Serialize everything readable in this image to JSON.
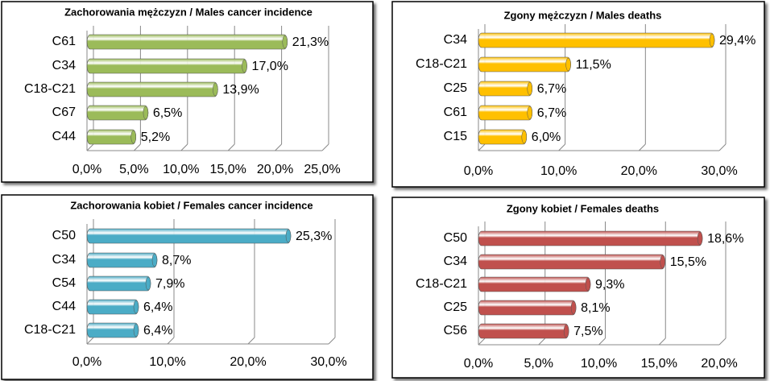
{
  "chart_data": [
    {
      "type": "bar",
      "title": "Zachorowania mężczyzn / Males cancer incidence",
      "categories": [
        "C61",
        "C34",
        "C18-C21",
        "C67",
        "C44"
      ],
      "values": [
        21.3,
        17.0,
        13.9,
        6.5,
        5.2
      ],
      "value_labels": [
        "21,3%",
        "17,0%",
        "13,9%",
        "6,5%",
        "5,2%"
      ],
      "color": "#9bbb59",
      "xlim": [
        0,
        25
      ],
      "xticks": [
        {
          "value": 0,
          "label": "0,0%"
        },
        {
          "value": 5,
          "label": "5,0%"
        },
        {
          "value": 10,
          "label": "10,0%"
        },
        {
          "value": 15,
          "label": "15,0%"
        },
        {
          "value": 20,
          "label": "20,0%"
        },
        {
          "value": 25,
          "label": "25,0%"
        }
      ],
      "grid": true
    },
    {
      "type": "bar",
      "title": "Zgony mężczyzn / Males deaths",
      "categories": [
        "C34",
        "C18-C21",
        "C25",
        "C61",
        "C15"
      ],
      "values": [
        29.4,
        11.5,
        6.7,
        6.7,
        6.0
      ],
      "value_labels": [
        "29,4%",
        "11,5%",
        "6,7%",
        "6,7%",
        "6,0%"
      ],
      "color": "#ffc000",
      "xlim": [
        0,
        30
      ],
      "xticks": [
        {
          "value": 0,
          "label": "0,0%"
        },
        {
          "value": 10,
          "label": "10,0%"
        },
        {
          "value": 20,
          "label": "20,0%"
        },
        {
          "value": 30,
          "label": "30,0%"
        }
      ],
      "grid": true
    },
    {
      "type": "bar",
      "title": "Zachorowania kobiet / Females cancer incidence",
      "categories": [
        "C50",
        "C34",
        "C54",
        "C44",
        "C18-C21"
      ],
      "values": [
        25.3,
        8.7,
        7.9,
        6.4,
        6.4
      ],
      "value_labels": [
        "25,3%",
        "8,7%",
        "7,9%",
        "6,4%",
        "6,4%"
      ],
      "color": "#4bacc6",
      "xlim": [
        0,
        30
      ],
      "xticks": [
        {
          "value": 0,
          "label": "0,0%"
        },
        {
          "value": 10,
          "label": "10,0%"
        },
        {
          "value": 20,
          "label": "20,0%"
        },
        {
          "value": 30,
          "label": "30,0%"
        }
      ],
      "grid": true
    },
    {
      "type": "bar",
      "title": "Zgony kobiet / Females deaths",
      "categories": [
        "C50",
        "C34",
        "C18-C21",
        "C25",
        "C56"
      ],
      "values": [
        18.6,
        15.5,
        9.3,
        8.1,
        7.5
      ],
      "value_labels": [
        "18,6%",
        "15,5%",
        "9,3%",
        "8,1%",
        "7,5%"
      ],
      "color": "#c0504d",
      "xlim": [
        0,
        20
      ],
      "xticks": [
        {
          "value": 0,
          "label": "0,0%"
        },
        {
          "value": 5,
          "label": "5,0%"
        },
        {
          "value": 10,
          "label": "10,0%"
        },
        {
          "value": 15,
          "label": "15,0%"
        },
        {
          "value": 20,
          "label": "20,0%"
        }
      ],
      "grid": true
    }
  ]
}
